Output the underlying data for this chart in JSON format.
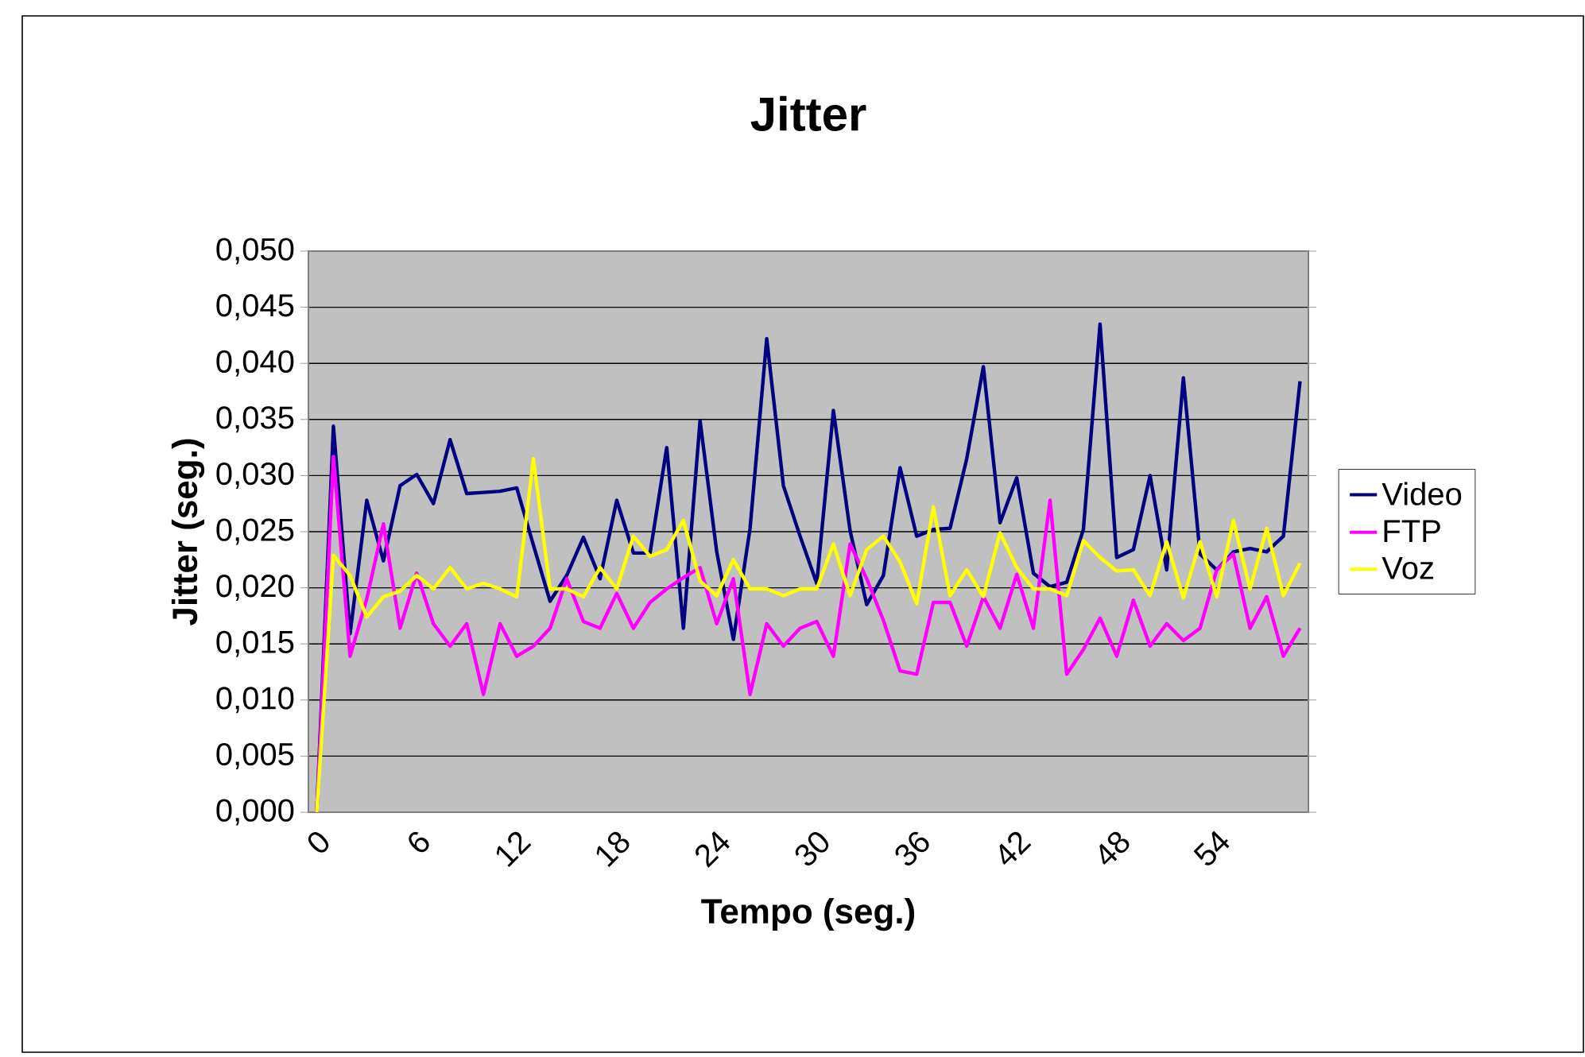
{
  "chart_data": {
    "type": "line",
    "title": "Jitter",
    "xlabel": "Tempo (seg.)",
    "ylabel": "Jitter (seg.)",
    "categories": [
      "0",
      null,
      null,
      null,
      null,
      null,
      "6",
      null,
      null,
      null,
      null,
      null,
      "12",
      null,
      null,
      null,
      null,
      null,
      "18",
      null,
      null,
      null,
      null,
      null,
      "24",
      null,
      null,
      null,
      null,
      null,
      "30",
      null,
      null,
      null,
      null,
      null,
      "36",
      null,
      null,
      null,
      null,
      null,
      "42",
      null,
      null,
      null,
      null,
      null,
      "48",
      null,
      null,
      null,
      null,
      null,
      "54",
      null,
      null,
      null,
      null,
      null
    ],
    "series": [
      {
        "name": "Video",
        "color": "#000080",
        "values": [
          0,
          0.0344,
          0.0159,
          0.0278,
          0.0224,
          0.0291,
          0.0301,
          0.0275,
          0.0332,
          0.0284,
          0.0285,
          0.0286,
          0.0289,
          0.0238,
          0.0188,
          0.0211,
          0.0245,
          0.0208,
          0.0278,
          0.0231,
          0.0231,
          0.0325,
          0.0164,
          0.0349,
          0.0232,
          0.0154,
          0.0253,
          0.0422,
          0.0291,
          0.0246,
          0.0204,
          0.0358,
          0.0251,
          0.0185,
          0.0211,
          0.0307,
          0.0246,
          0.0252,
          0.0253,
          0.0315,
          0.0397,
          0.0258,
          0.0298,
          0.0213,
          0.0201,
          0.0205,
          0.0252,
          0.0435,
          0.0227,
          0.0234,
          0.03,
          0.0216,
          0.0387,
          0.023,
          0.0216,
          0.0232,
          0.0235,
          0.0232,
          0.0246,
          0.0384
        ]
      },
      {
        "name": "FTP",
        "color": "#ff00ff",
        "values": [
          0,
          0.0317,
          0.0139,
          0.019,
          0.0257,
          0.0164,
          0.0213,
          0.0168,
          0.0148,
          0.0168,
          0.0105,
          0.0168,
          0.0139,
          0.0148,
          0.0164,
          0.0208,
          0.017,
          0.0164,
          0.0195,
          0.0164,
          0.0187,
          0.0199,
          0.0209,
          0.0218,
          0.0168,
          0.0208,
          0.0105,
          0.0168,
          0.0148,
          0.0164,
          0.017,
          0.0139,
          0.0239,
          0.0208,
          0.0171,
          0.0126,
          0.0123,
          0.0187,
          0.0187,
          0.0148,
          0.0192,
          0.0164,
          0.0212,
          0.0164,
          0.0278,
          0.0123,
          0.0145,
          0.0173,
          0.0139,
          0.0189,
          0.0148,
          0.0168,
          0.0153,
          0.0164,
          0.0216,
          0.023,
          0.0164,
          0.0192,
          0.0139,
          0.0164
        ]
      },
      {
        "name": "Voz",
        "color": "#ffff00",
        "values": [
          0,
          0.0229,
          0.0211,
          0.0174,
          0.0192,
          0.0197,
          0.0211,
          0.0199,
          0.0218,
          0.0199,
          0.0204,
          0.0199,
          0.0192,
          0.0315,
          0.0199,
          0.0199,
          0.0192,
          0.0218,
          0.0199,
          0.0246,
          0.0228,
          0.0234,
          0.026,
          0.0206,
          0.0193,
          0.0225,
          0.0199,
          0.0199,
          0.0193,
          0.0199,
          0.0199,
          0.0239,
          0.0193,
          0.0234,
          0.0246,
          0.0223,
          0.0186,
          0.0272,
          0.0193,
          0.0216,
          0.0192,
          0.0249,
          0.0218,
          0.0199,
          0.0199,
          0.0193,
          0.0242,
          0.0227,
          0.0215,
          0.0216,
          0.0193,
          0.0241,
          0.0191,
          0.0241,
          0.0192,
          0.026,
          0.0199,
          0.0253,
          0.0193,
          0.0222
        ]
      }
    ],
    "ylim": [
      0,
      0.05
    ],
    "yticks": [
      {
        "value": 0,
        "label": "0,000"
      },
      {
        "value": 0.005,
        "label": "0,005"
      },
      {
        "value": 0.01,
        "label": "0,010"
      },
      {
        "value": 0.015,
        "label": "0,015"
      },
      {
        "value": 0.02,
        "label": "0,020"
      },
      {
        "value": 0.025,
        "label": "0,025"
      },
      {
        "value": 0.03,
        "label": "0,030"
      },
      {
        "value": 0.035,
        "label": "0,035"
      },
      {
        "value": 0.04,
        "label": "0,040"
      },
      {
        "value": 0.045,
        "label": "0,045"
      },
      {
        "value": 0.05,
        "label": "0,050"
      }
    ],
    "grid": "y",
    "legend": "right",
    "marker": "none",
    "line_style": "solid"
  }
}
